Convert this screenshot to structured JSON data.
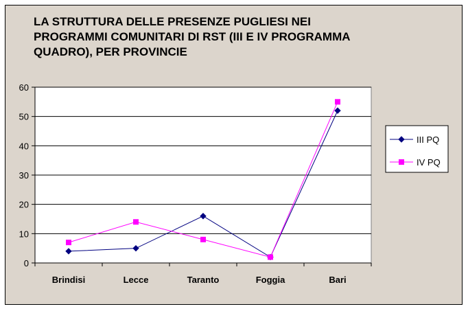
{
  "chart_data": {
    "type": "line",
    "title": "LA STRUTTURA DELLE PRESENZE PUGLIESI NEI PROGRAMMI COMUNITARI DI RST (III E IV PROGRAMMA QUADRO), PER PROVINCIE",
    "categories": [
      "Brindisi",
      "Lecce",
      "Taranto",
      "Foggia",
      "Bari"
    ],
    "series": [
      {
        "name": "III PQ",
        "values": [
          4,
          5,
          16,
          2,
          52
        ],
        "color": "#000080",
        "marker": "diamond"
      },
      {
        "name": "IV PQ",
        "values": [
          7,
          14,
          8,
          2,
          55
        ],
        "color": "#ff00ff",
        "marker": "square"
      }
    ],
    "ylim": [
      0,
      60
    ],
    "yticks": [
      0,
      10,
      20,
      30,
      40,
      50,
      60
    ],
    "xlabel": "",
    "ylabel": "",
    "grid": true,
    "legend_position": "right",
    "plot_background": "#ffffff",
    "frame_background": "#dcd5cc"
  }
}
